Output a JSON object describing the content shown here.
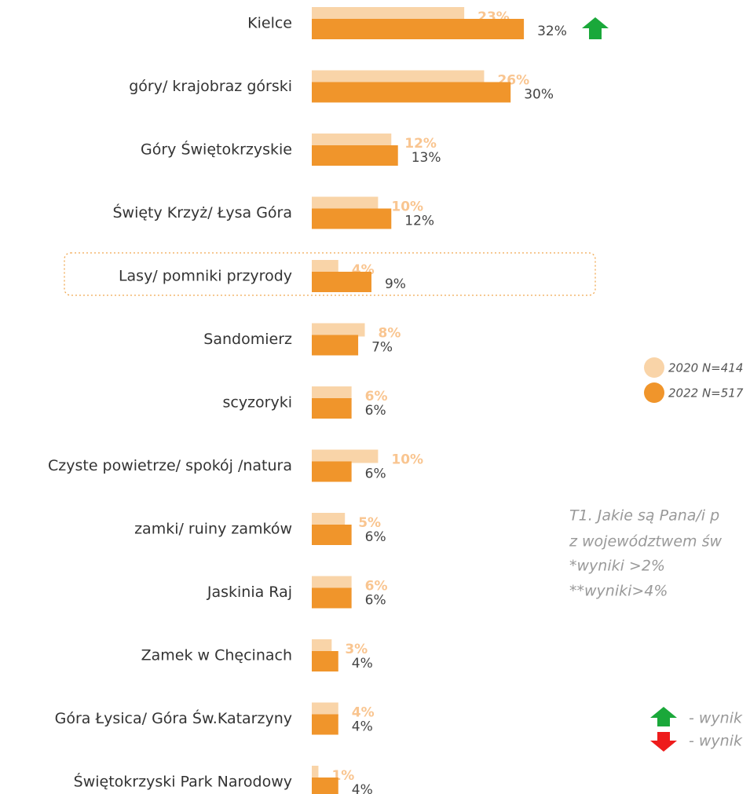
{
  "chart_data": {
    "type": "bar",
    "orientation": "horizontal",
    "categories": [
      "Kielce",
      "góry/ krajobraz górski",
      "Góry Świętokrzyskie",
      "Święty Krzyż/ Łysa Góra",
      "Lasy/ pomniki przyrody",
      "Sandomierz",
      "scyzoryki",
      "Czyste powietrze/ spokój /natura",
      "zamki/ ruiny zamków",
      "Jaskinia Raj",
      "Zamek w Chęcinach",
      "Góra Łysica/ Góra Św.Katarzyny",
      "Świętokrzyski Park Narodowy"
    ],
    "series": [
      {
        "name": "2020 N=414",
        "color": "#f9d4a8",
        "values": [
          23,
          26,
          12,
          10,
          4,
          8,
          6,
          10,
          5,
          6,
          3,
          4,
          1
        ],
        "value_labels": [
          "23%",
          "26%",
          "12%",
          "10%",
          "4%",
          "8%",
          "6%",
          "10%",
          "5%",
          "6%",
          "3%",
          "4%",
          "1%"
        ]
      },
      {
        "name": "2022 N=517",
        "color": "#f0952b",
        "values": [
          32,
          30,
          13,
          12,
          9,
          7,
          6,
          6,
          6,
          6,
          4,
          4,
          4
        ],
        "value_labels": [
          "32%",
          "30%",
          "13%",
          "12%",
          "9%",
          "7%",
          "6%",
          "6%",
          "6%",
          "6%",
          "4%",
          "4%",
          "4%"
        ]
      }
    ],
    "notes": [
      "T1. Jakie są Pana/i p",
      "z województwem św",
      "*wyniki >2%",
      "**wyniki>4%"
    ],
    "arrow_legend": [
      "- wynik",
      "- wynik"
    ]
  }
}
